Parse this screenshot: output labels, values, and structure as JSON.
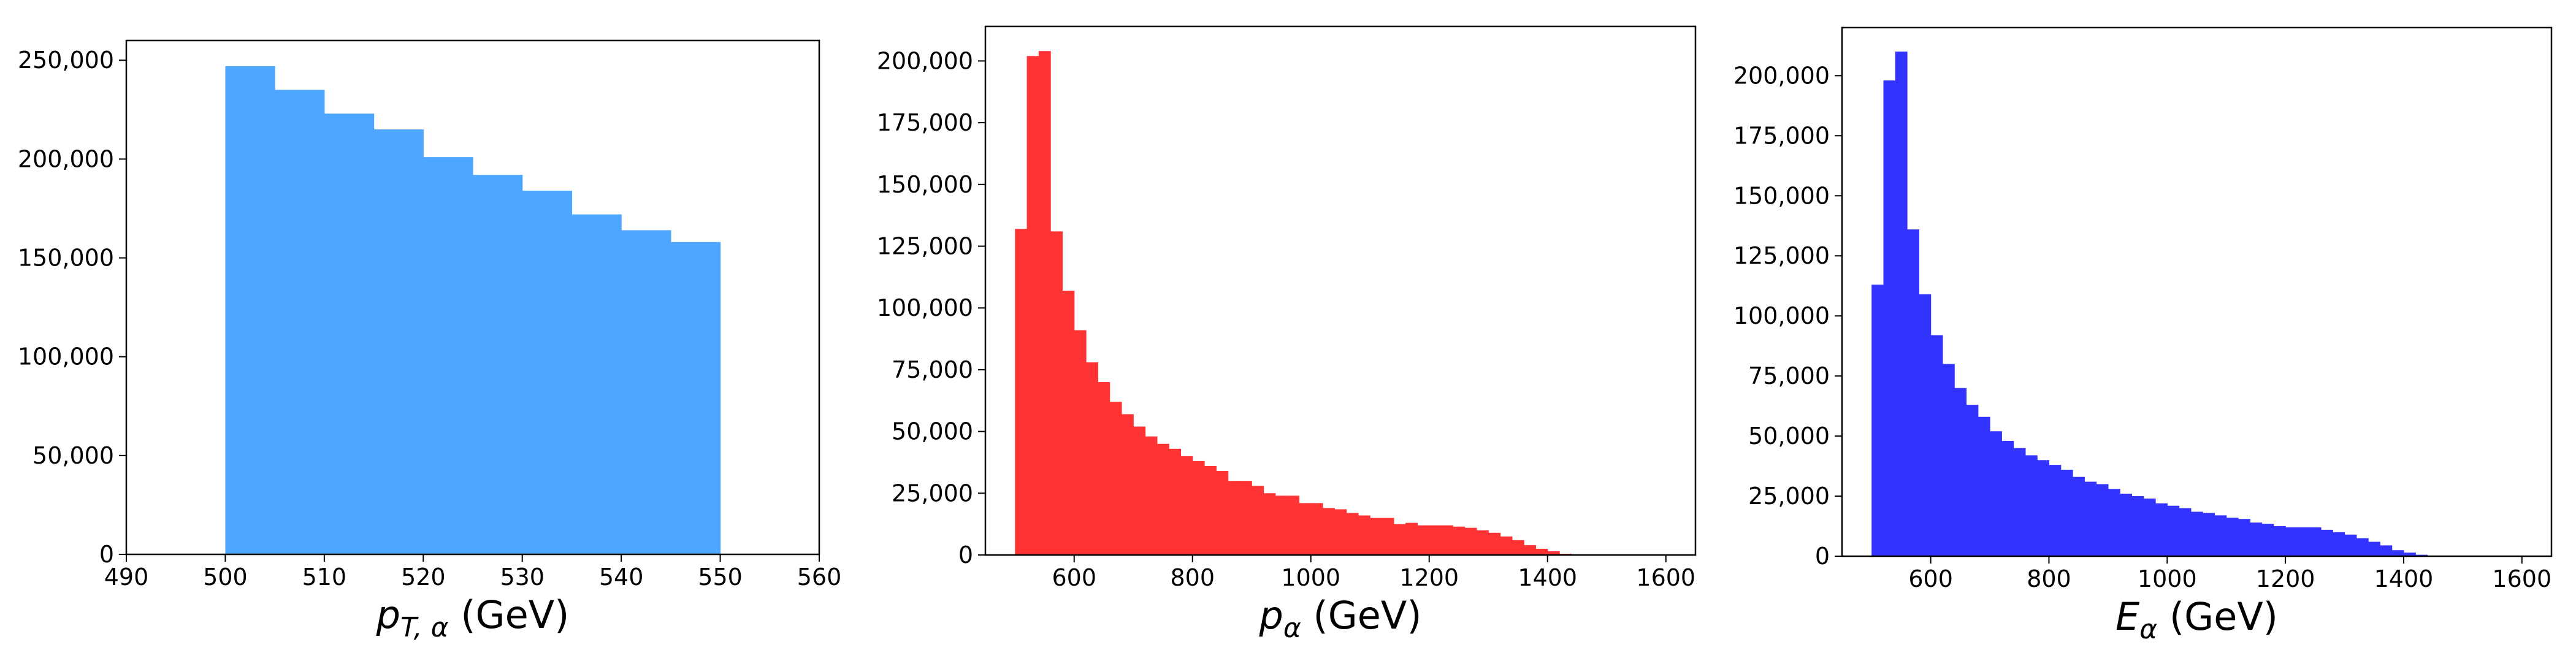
{
  "chart_data": [
    {
      "type": "bar",
      "title": "",
      "xlabel": "p_{T,α} (GeV)",
      "xlabel_parts": {
        "main": "p",
        "sub": "T, α",
        "unit": " (GeV)"
      },
      "ylabel": "",
      "color": "#4da6ff",
      "xlim": [
        490,
        560
      ],
      "ylim": [
        0,
        260000
      ],
      "xticks": [
        490,
        500,
        510,
        520,
        530,
        540,
        550,
        560
      ],
      "yticks": [
        0,
        50000,
        100000,
        150000,
        200000,
        250000
      ],
      "ytick_labels": [
        "0",
        "50,000",
        "100,000",
        "150,000",
        "200,000",
        "250,000"
      ],
      "bin_start": 500,
      "bin_width": 5,
      "values": [
        247000,
        235000,
        223000,
        215000,
        201000,
        192000,
        184000,
        172000,
        164000,
        158000
      ]
    },
    {
      "type": "bar",
      "title": "",
      "xlabel": "p_α (GeV)",
      "xlabel_parts": {
        "main": "p",
        "sub": "α",
        "unit": " (GeV)"
      },
      "ylabel": "",
      "color": "#ff3333",
      "xlim": [
        450,
        1650
      ],
      "ylim": [
        0,
        214000
      ],
      "xticks": [
        600,
        800,
        1000,
        1200,
        1400,
        1600
      ],
      "yticks": [
        0,
        25000,
        50000,
        75000,
        100000,
        125000,
        150000,
        175000,
        200000
      ],
      "ytick_labels": [
        "0",
        "25,000",
        "50,000",
        "75,000",
        "100,000",
        "125,000",
        "150,000",
        "175,000",
        "200,000"
      ],
      "bin_start": 500,
      "bin_width": 20,
      "values": [
        132000,
        202000,
        204000,
        131000,
        107000,
        91000,
        78000,
        70000,
        62000,
        57000,
        52000,
        48000,
        45000,
        43000,
        40000,
        38000,
        36000,
        34000,
        30000,
        30000,
        28000,
        25000,
        24000,
        24000,
        21000,
        21000,
        19000,
        18500,
        17000,
        16000,
        15000,
        15000,
        12500,
        13000,
        12000,
        12000,
        12000,
        11500,
        11000,
        10000,
        9000,
        7500,
        6000,
        4000,
        2500,
        1500,
        500,
        200,
        50,
        0
      ]
    },
    {
      "type": "bar",
      "title": "",
      "xlabel": "E_α (GeV)",
      "xlabel_parts": {
        "main": "E",
        "sub": "α",
        "unit": " (GeV)"
      },
      "ylabel": "",
      "color": "#3333ff",
      "xlim": [
        450,
        1650
      ],
      "ylim": [
        0,
        220000
      ],
      "xticks": [
        600,
        800,
        1000,
        1200,
        1400,
        1600
      ],
      "yticks": [
        0,
        25000,
        50000,
        75000,
        100000,
        125000,
        150000,
        175000,
        200000
      ],
      "ytick_labels": [
        "0",
        "25,000",
        "50,000",
        "75,000",
        "100,000",
        "125,000",
        "150,000",
        "175,000",
        "200,000"
      ],
      "bin_start": 500,
      "bin_width": 20,
      "values": [
        113000,
        198000,
        210000,
        136000,
        109000,
        92000,
        80000,
        70000,
        63000,
        58000,
        52000,
        48000,
        45000,
        42000,
        40000,
        38000,
        36000,
        33000,
        31000,
        30000,
        28000,
        26000,
        25000,
        24000,
        22000,
        21000,
        20000,
        18500,
        18000,
        17000,
        16000,
        15500,
        14000,
        13500,
        12500,
        12000,
        12000,
        12000,
        11000,
        10000,
        9000,
        7500,
        6000,
        4500,
        2500,
        1500,
        600,
        200,
        50,
        0
      ]
    }
  ]
}
